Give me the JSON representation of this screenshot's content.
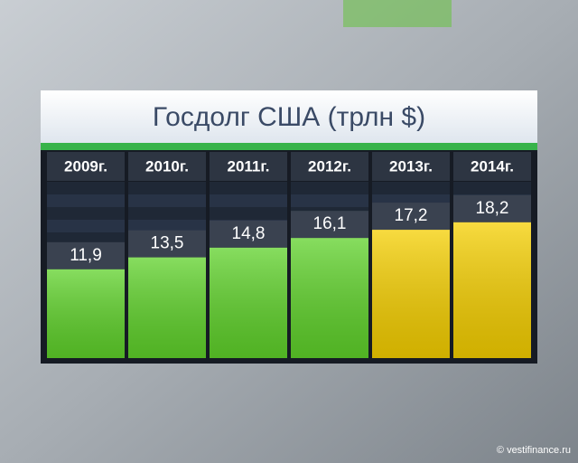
{
  "chart_data": {
    "type": "bar",
    "title": "Госдолг США (трлн $)",
    "categories": [
      "2009г.",
      "2010г.",
      "2011г.",
      "2012г.",
      "2013г.",
      "2014г."
    ],
    "values": [
      11.9,
      13.5,
      14.8,
      16.1,
      17.2,
      18.2
    ],
    "value_labels": [
      "11,9",
      "13,5",
      "14,8",
      "16,1",
      "17,2",
      "18,2"
    ],
    "colors": [
      "#5fd22a",
      "#5fd22a",
      "#5fd22a",
      "#5fd22a",
      "#f5cf00",
      "#f5cf00"
    ],
    "source": "© vestifinance.ru"
  }
}
